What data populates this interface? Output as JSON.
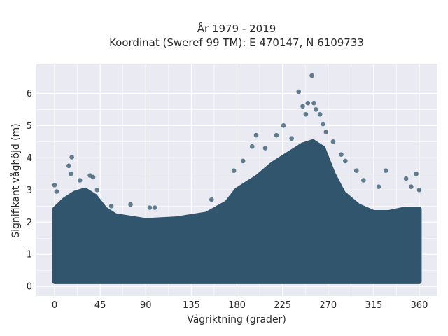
{
  "chart_data": {
    "type": "scatter",
    "title": "År 1979 - 2019",
    "subtitle": "Koordinat (Sweref 99 TM): E 470147, N 6109733",
    "xlabel": "Vågriktning (grader)",
    "ylabel": "Signifikant våghöjd (m)",
    "xlim": [
      -18,
      378
    ],
    "ylim": [
      -0.3,
      6.9
    ],
    "xticks": [
      0,
      45,
      90,
      135,
      180,
      225,
      270,
      315,
      360
    ],
    "yticks": [
      0,
      1,
      2,
      3,
      4,
      5,
      6
    ],
    "grid": true,
    "legend": "none",
    "colors": {
      "points": "#30556c",
      "plot_bg": "#eaeaf2",
      "grid": "#ffffff"
    },
    "dense_envelope": {
      "x": [
        0,
        10,
        20,
        30,
        40,
        50,
        60,
        90,
        120,
        150,
        170,
        180,
        190,
        200,
        215,
        230,
        245,
        255,
        265,
        275,
        285,
        300,
        315,
        330,
        345,
        360
      ],
      "y_min": [
        0.15,
        0.15,
        0.15,
        0.15,
        0.15,
        0.15,
        0.15,
        0.15,
        0.15,
        0.15,
        0.15,
        0.15,
        0.15,
        0.15,
        0.15,
        0.15,
        0.15,
        0.15,
        0.15,
        0.15,
        0.15,
        0.15,
        0.15,
        0.15,
        0.15,
        0.15
      ],
      "y_max": [
        2.4,
        2.7,
        2.9,
        3.0,
        2.8,
        2.4,
        2.2,
        2.05,
        2.1,
        2.25,
        2.6,
        3.0,
        3.2,
        3.4,
        3.8,
        4.1,
        4.4,
        4.5,
        4.3,
        3.5,
        2.9,
        2.5,
        2.3,
        2.3,
        2.4,
        2.4
      ]
    },
    "outliers": [
      {
        "x": 0,
        "y": 3.15
      },
      {
        "x": 2,
        "y": 2.95
      },
      {
        "x": 14,
        "y": 3.75
      },
      {
        "x": 16,
        "y": 3.5
      },
      {
        "x": 17,
        "y": 4.02
      },
      {
        "x": 25,
        "y": 3.3
      },
      {
        "x": 35,
        "y": 3.45
      },
      {
        "x": 38,
        "y": 3.4
      },
      {
        "x": 42,
        "y": 3.0
      },
      {
        "x": 56,
        "y": 2.5
      },
      {
        "x": 75,
        "y": 2.55
      },
      {
        "x": 94,
        "y": 2.45
      },
      {
        "x": 99,
        "y": 2.45
      },
      {
        "x": 155,
        "y": 2.7
      },
      {
        "x": 177,
        "y": 3.6
      },
      {
        "x": 186,
        "y": 3.9
      },
      {
        "x": 195,
        "y": 4.35
      },
      {
        "x": 199,
        "y": 4.7
      },
      {
        "x": 208,
        "y": 4.3
      },
      {
        "x": 219,
        "y": 4.7
      },
      {
        "x": 226,
        "y": 5.0
      },
      {
        "x": 234,
        "y": 4.6
      },
      {
        "x": 241,
        "y": 6.05
      },
      {
        "x": 245,
        "y": 5.6
      },
      {
        "x": 248,
        "y": 5.35
      },
      {
        "x": 250,
        "y": 5.7
      },
      {
        "x": 254,
        "y": 6.55
      },
      {
        "x": 256,
        "y": 5.7
      },
      {
        "x": 258,
        "y": 5.5
      },
      {
        "x": 262,
        "y": 5.35
      },
      {
        "x": 265,
        "y": 5.05
      },
      {
        "x": 268,
        "y": 4.8
      },
      {
        "x": 275,
        "y": 4.5
      },
      {
        "x": 283,
        "y": 4.1
      },
      {
        "x": 287,
        "y": 3.9
      },
      {
        "x": 298,
        "y": 3.6
      },
      {
        "x": 305,
        "y": 3.3
      },
      {
        "x": 320,
        "y": 3.1
      },
      {
        "x": 327,
        "y": 3.6
      },
      {
        "x": 347,
        "y": 3.35
      },
      {
        "x": 352,
        "y": 3.1
      },
      {
        "x": 357,
        "y": 3.5
      },
      {
        "x": 360,
        "y": 3.0
      }
    ]
  }
}
